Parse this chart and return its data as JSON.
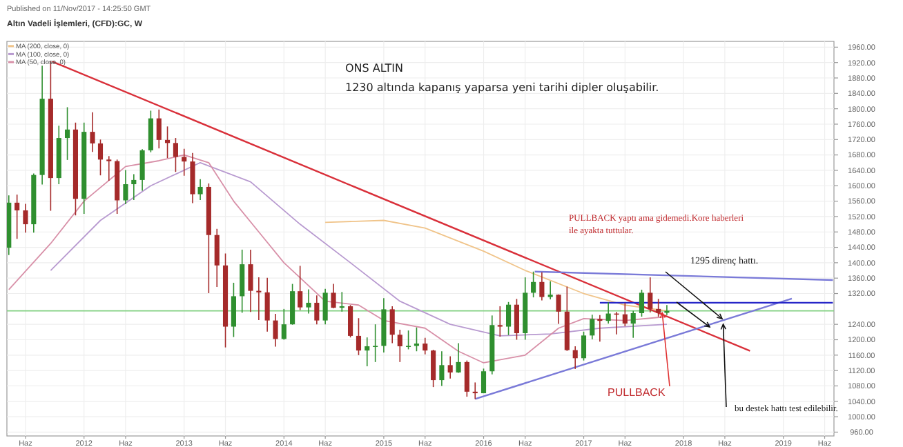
{
  "chart_data": {
    "type": "candlestick",
    "title": "Altın Vadeli İşlemleri, (CFD):GC, W",
    "x": [
      "2011-04",
      "2011-05",
      "2011-06",
      "2011-07",
      "2011-08",
      "2011-09",
      "2011-10",
      "2011-11",
      "2011-12",
      "2012-01",
      "2012-02",
      "2012-03",
      "2012-04",
      "2012-05",
      "2012-06",
      "2012-07",
      "2012-08",
      "2012-09",
      "2012-10",
      "2012-11",
      "2012-12",
      "2013-01",
      "2013-02",
      "2013-03",
      "2013-04",
      "2013-05",
      "2013-06",
      "2013-07",
      "2013-08",
      "2013-09",
      "2013-10",
      "2013-11",
      "2013-12",
      "2014-01",
      "2014-02",
      "2014-03",
      "2014-04",
      "2014-05",
      "2014-06",
      "2014-07",
      "2014-08",
      "2014-09",
      "2014-10",
      "2014-11",
      "2014-12",
      "2015-01",
      "2015-02",
      "2015-03",
      "2015-04",
      "2015-05",
      "2015-06",
      "2015-07",
      "2015-08",
      "2015-09",
      "2015-10",
      "2015-11",
      "2015-12",
      "2016-01",
      "2016-02",
      "2016-03",
      "2016-04",
      "2016-05",
      "2016-06",
      "2016-07",
      "2016-08",
      "2016-09",
      "2016-10",
      "2016-11",
      "2016-12",
      "2017-01",
      "2017-02",
      "2017-03",
      "2017-04",
      "2017-05",
      "2017-06",
      "2017-07",
      "2017-08",
      "2017-09",
      "2017-10",
      "2017-11"
    ],
    "ohlc": [
      [
        1439,
        1575,
        1420,
        1556
      ],
      [
        1556,
        1577,
        1462,
        1536
      ],
      [
        1536,
        1553,
        1478,
        1500
      ],
      [
        1500,
        1632,
        1478,
        1628
      ],
      [
        1628,
        1912,
        1603,
        1826
      ],
      [
        1826,
        1923,
        1535,
        1620
      ],
      [
        1620,
        1756,
        1604,
        1724
      ],
      [
        1724,
        1804,
        1667,
        1746
      ],
      [
        1746,
        1764,
        1523,
        1566
      ],
      [
        1566,
        1764,
        1527,
        1740
      ],
      [
        1740,
        1791,
        1688,
        1710
      ],
      [
        1710,
        1720,
        1627,
        1668
      ],
      [
        1668,
        1677,
        1613,
        1664
      ],
      [
        1664,
        1668,
        1527,
        1562
      ],
      [
        1562,
        1641,
        1552,
        1604
      ],
      [
        1604,
        1630,
        1563,
        1615
      ],
      [
        1615,
        1695,
        1587,
        1692
      ],
      [
        1692,
        1795,
        1687,
        1775
      ],
      [
        1775,
        1798,
        1697,
        1719
      ],
      [
        1719,
        1754,
        1672,
        1711
      ],
      [
        1711,
        1724,
        1636,
        1675
      ],
      [
        1675,
        1696,
        1626,
        1663
      ],
      [
        1663,
        1685,
        1555,
        1578
      ],
      [
        1578,
        1617,
        1563,
        1597
      ],
      [
        1597,
        1606,
        1321,
        1472
      ],
      [
        1472,
        1488,
        1337,
        1393
      ],
      [
        1393,
        1424,
        1180,
        1234
      ],
      [
        1234,
        1348,
        1207,
        1313
      ],
      [
        1313,
        1434,
        1270,
        1396
      ],
      [
        1396,
        1434,
        1272,
        1327
      ],
      [
        1327,
        1362,
        1251,
        1323
      ],
      [
        1323,
        1361,
        1221,
        1250
      ],
      [
        1250,
        1267,
        1182,
        1202
      ],
      [
        1202,
        1280,
        1200,
        1240
      ],
      [
        1240,
        1345,
        1239,
        1326
      ],
      [
        1326,
        1392,
        1277,
        1284
      ],
      [
        1284,
        1331,
        1268,
        1296
      ],
      [
        1296,
        1315,
        1240,
        1250
      ],
      [
        1250,
        1332,
        1240,
        1322
      ],
      [
        1322,
        1345,
        1282,
        1283
      ],
      [
        1283,
        1324,
        1273,
        1287
      ],
      [
        1287,
        1290,
        1206,
        1210
      ],
      [
        1210,
        1256,
        1160,
        1172
      ],
      [
        1172,
        1206,
        1131,
        1183
      ],
      [
        1183,
        1240,
        1142,
        1184
      ],
      [
        1184,
        1308,
        1167,
        1279
      ],
      [
        1279,
        1287,
        1191,
        1213
      ],
      [
        1213,
        1226,
        1142,
        1183
      ],
      [
        1183,
        1224,
        1175,
        1184
      ],
      [
        1184,
        1232,
        1170,
        1190
      ],
      [
        1190,
        1205,
        1162,
        1172
      ],
      [
        1172,
        1174,
        1077,
        1095
      ],
      [
        1095,
        1170,
        1080,
        1134
      ],
      [
        1134,
        1157,
        1099,
        1115
      ],
      [
        1115,
        1191,
        1114,
        1142
      ],
      [
        1142,
        1146,
        1052,
        1065
      ],
      [
        1065,
        1089,
        1046,
        1061
      ],
      [
        1061,
        1125,
        1061,
        1118
      ],
      [
        1118,
        1263,
        1110,
        1238
      ],
      [
        1238,
        1287,
        1208,
        1234
      ],
      [
        1234,
        1298,
        1212,
        1291
      ],
      [
        1291,
        1306,
        1200,
        1217
      ],
      [
        1217,
        1362,
        1200,
        1322
      ],
      [
        1322,
        1377,
        1310,
        1350
      ],
      [
        1350,
        1375,
        1302,
        1311
      ],
      [
        1311,
        1352,
        1305,
        1317
      ],
      [
        1317,
        1318,
        1241,
        1273
      ],
      [
        1273,
        1338,
        1171,
        1173
      ],
      [
        1173,
        1183,
        1124,
        1152
      ],
      [
        1152,
        1221,
        1146,
        1211
      ],
      [
        1211,
        1265,
        1201,
        1254
      ],
      [
        1254,
        1264,
        1195,
        1249
      ],
      [
        1249,
        1297,
        1242,
        1268
      ],
      [
        1268,
        1272,
        1214,
        1266
      ],
      [
        1266,
        1296,
        1235,
        1242
      ],
      [
        1242,
        1275,
        1205,
        1269
      ],
      [
        1269,
        1330,
        1260,
        1322
      ],
      [
        1322,
        1362,
        1271,
        1280
      ],
      [
        1280,
        1306,
        1260,
        1270
      ],
      [
        1270,
        1290,
        1264,
        1275
      ]
    ],
    "colors": [
      "#2f8f2f",
      "#a52a2a",
      "#a52a2a",
      "#2f8f2f",
      "#2f8f2f",
      "#a52a2a",
      "#2f8f2f",
      "#2f8f2f",
      "#a52a2a",
      "#2f8f2f",
      "#a52a2a",
      "#a52a2a",
      "#a52a2a",
      "#a52a2a",
      "#2f8f2f",
      "#2f8f2f",
      "#2f8f2f",
      "#2f8f2f",
      "#a52a2a",
      "#a52a2a",
      "#a52a2a",
      "#a52a2a",
      "#a52a2a",
      "#2f8f2f",
      "#a52a2a",
      "#a52a2a",
      "#a52a2a",
      "#2f8f2f",
      "#2f8f2f",
      "#a52a2a",
      "#a52a2a",
      "#a52a2a",
      "#a52a2a",
      "#2f8f2f",
      "#2f8f2f",
      "#a52a2a",
      "#2f8f2f",
      "#a52a2a",
      "#2f8f2f",
      "#a52a2a",
      "#2f8f2f",
      "#a52a2a",
      "#a52a2a",
      "#2f8f2f",
      "#2f8f2f",
      "#2f8f2f",
      "#a52a2a",
      "#a52a2a",
      "#2f8f2f",
      "#2f8f2f",
      "#a52a2a",
      "#a52a2a",
      "#2f8f2f",
      "#a52a2a",
      "#2f8f2f",
      "#a52a2a",
      "#a52a2a",
      "#2f8f2f",
      "#2f8f2f",
      "#a52a2a",
      "#2f8f2f",
      "#a52a2a",
      "#2f8f2f",
      "#2f8f2f",
      "#a52a2a",
      "#2f8f2f",
      "#a52a2a",
      "#a52a2a",
      "#a52a2a",
      "#2f8f2f",
      "#2f8f2f",
      "#a52a2a",
      "#2f8f2f",
      "#a52a2a",
      "#a52a2a",
      "#2f8f2f",
      "#2f8f2f",
      "#a52a2a",
      "#a52a2a",
      "#2f8f2f"
    ],
    "series": [
      {
        "type": "line",
        "name": "MA (200, close, 0)",
        "color": "#f0c48a",
        "x": [
          "2014-06",
          "2015-01",
          "2015-06",
          "2016-01",
          "2016-06",
          "2017-01",
          "2017-06",
          "2017-11"
        ],
        "values": [
          1505,
          1510,
          1490,
          1430,
          1380,
          1320,
          1290,
          1275
        ]
      },
      {
        "type": "line",
        "name": "MA (100, close, 0)",
        "color": "#b89ad0",
        "x": [
          "2011-09",
          "2012-03",
          "2012-09",
          "2013-03",
          "2013-09",
          "2014-03",
          "2014-09",
          "2015-03",
          "2015-09",
          "2016-03",
          "2016-09",
          "2017-03",
          "2017-11"
        ],
        "values": [
          1380,
          1510,
          1600,
          1660,
          1610,
          1500,
          1400,
          1300,
          1240,
          1210,
          1215,
          1230,
          1240
        ]
      },
      {
        "type": "line",
        "name": "MA (50, close, 0)",
        "color": "#d890a8",
        "x": [
          "2011-04",
          "2011-09",
          "2012-01",
          "2012-06",
          "2012-10",
          "2013-01",
          "2013-04",
          "2013-07",
          "2013-10",
          "2014-01",
          "2014-06",
          "2014-10",
          "2015-01",
          "2015-06",
          "2015-10",
          "2016-01",
          "2016-06",
          "2016-10",
          "2017-01",
          "2017-06",
          "2017-11"
        ],
        "values": [
          1330,
          1450,
          1560,
          1650,
          1665,
          1680,
          1660,
          1560,
          1480,
          1400,
          1300,
          1290,
          1250,
          1230,
          1170,
          1140,
          1160,
          1230,
          1255,
          1250,
          1260
        ]
      },
      {
        "type": "line",
        "color": "#d9303a",
        "x": [
          "2011-09-06",
          "2018-09"
        ],
        "values": [
          1923,
          1171
        ]
      },
      {
        "type": "line",
        "color": "#7a7ad8",
        "x": [
          "2015-12-01",
          "2019-02"
        ],
        "values": [
          1046,
          1307
        ]
      },
      {
        "type": "line",
        "color": "#7a7ad8",
        "x": [
          "2016-07-06",
          "2019-07"
        ],
        "values": [
          1377,
          1355
        ]
      },
      {
        "type": "line",
        "color": "#2626c8",
        "x": [
          "2017-03",
          "2019-07"
        ],
        "values": [
          1296,
          1296
        ]
      }
    ],
    "ref_lines": [
      {
        "axis": "y",
        "value": 1275,
        "color": "#80d080"
      }
    ],
    "xlim": [
      "2011-03-25",
      "2019-07-05"
    ],
    "xticks": [
      {
        "value": "2011-06",
        "label": "Haz"
      },
      "2012",
      {
        "value": "2012-06",
        "label": "Haz"
      },
      "2013",
      {
        "value": "2013-06",
        "label": "Haz"
      },
      "2014",
      {
        "value": "2014-06",
        "label": "Haz"
      },
      "2015",
      {
        "value": "2015-06",
        "label": "Haz"
      },
      "2016",
      {
        "value": "2016-06",
        "label": "Haz"
      },
      "2017",
      {
        "value": "2017-06",
        "label": "Haz"
      },
      "2018",
      {
        "value": "2018-06",
        "label": "Haz"
      },
      "2019",
      {
        "value": "2019-06",
        "label": "Haz"
      }
    ],
    "ylim": [
      950,
      1975
    ],
    "yticks": [
      {
        "value": 960,
        "label": "960.00"
      },
      {
        "value": 1000,
        "label": "1000.00"
      },
      {
        "value": 1040,
        "label": "1040.00"
      },
      {
        "value": 1080,
        "label": "1080.00"
      },
      {
        "value": 1120,
        "label": "1120.00"
      },
      {
        "value": 1160,
        "label": "1160.00"
      },
      {
        "value": 1200,
        "label": "1200.00"
      },
      {
        "value": 1240,
        "label": "1240.00"
      },
      {
        "value": 1320,
        "label": "1320.00"
      },
      {
        "value": 1360,
        "label": "1360.00"
      },
      {
        "value": 1400,
        "label": "1400.00"
      },
      {
        "value": 1440,
        "label": "1440.00"
      },
      {
        "value": 1480,
        "label": "1480.00"
      },
      {
        "value": 1520,
        "label": "1520.00"
      },
      {
        "value": 1560,
        "label": "1560.00"
      },
      {
        "value": 1600,
        "label": "1600.00"
      },
      {
        "value": 1640,
        "label": "1640.00"
      },
      {
        "value": 1680,
        "label": "1680.00"
      },
      {
        "value": 1720,
        "label": "1720.00"
      },
      {
        "value": 1760,
        "label": "1760.00"
      },
      {
        "value": 1800,
        "label": "1800.00"
      },
      {
        "value": 1840,
        "label": "1840.00"
      },
      {
        "value": 1880,
        "label": "1880.00"
      },
      {
        "value": 1920,
        "label": "1920.00"
      },
      {
        "value": 1960,
        "label": "1960.00"
      }
    ],
    "grid": true,
    "legend": "top left",
    "annotations": [
      "Published on 11/Nov/2017 - 14:25:50 GMT",
      "ONS ALTIN",
      "1230 altında kapanış yaparsa yeni tarihi dipler oluşabilir.",
      "PULLBACK yaptı ama gidemedi.Kore haberleri",
      "ile ayakta tuttular.",
      "1295 direnç hattı.",
      {
        "text": "PULLBACK",
        "x": "2017-10-15",
        "y": 1270
      },
      {
        "text": "bu destek hattı test edilebilir.",
        "x": "2018-05-26",
        "y": 1240
      }
    ]
  }
}
